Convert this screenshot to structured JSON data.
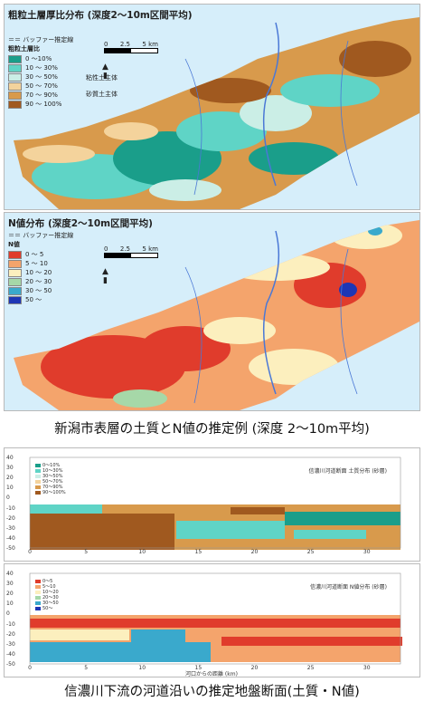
{
  "map1": {
    "title": "粗粒土層厚比分布 (深度2～10m区間平均)",
    "buffer_label": "＝＝ バッファー推定線",
    "legend_title": "粗粒土層比",
    "legend": [
      {
        "label": "0 ～10%",
        "color": "#1a9e8a"
      },
      {
        "label": "10 ～ 30%",
        "color": "#5fd4c6"
      },
      {
        "label": "30 ～ 50%",
        "color": "#cbeee6"
      },
      {
        "label": "50 ～ 70%",
        "color": "#f4d39c"
      },
      {
        "label": "70 ～ 90%",
        "color": "#d89a4c"
      },
      {
        "label": "90 ～ 100%",
        "color": "#a0591f"
      }
    ],
    "annot_top": "粘性土主体",
    "annot_bottom": "砂質土主体",
    "scale_ticks": [
      "0",
      "2.5",
      "5 km"
    ]
  },
  "map2": {
    "title": "N値分布 (深度2～10m区間平均)",
    "buffer_label": "＝＝ バッファー推定線",
    "legend_title": "N値",
    "legend": [
      {
        "label": "0 ～ 5",
        "color": "#e03c2c"
      },
      {
        "label": "5 ～ 10",
        "color": "#f4a46c"
      },
      {
        "label": "10 ～ 20",
        "color": "#fcefbe"
      },
      {
        "label": "20 ～ 30",
        "color": "#a6d8a8"
      },
      {
        "label": "30 ～ 50",
        "color": "#3aa9cc"
      },
      {
        "label": "50 ～",
        "color": "#1e36b5"
      }
    ],
    "scale_ticks": [
      "0",
      "2.5",
      "5 km"
    ]
  },
  "caption1": "新潟市表層の土質とN値の推定例 (深度 2～10m平均)",
  "caption2": "信濃川下流の河道沿いの推定地盤断面(土質・N値)",
  "section1": {
    "title": "信濃川河道断面 土質分布 (砂層)",
    "y_ticks": [
      "40",
      "30",
      "20",
      "10",
      "0",
      "-10",
      "-20",
      "-30",
      "-40",
      "-50"
    ],
    "x_ticks": [
      "0",
      "5",
      "10",
      "15",
      "20",
      "25",
      "30"
    ],
    "legend": [
      {
        "label": "0〜10%",
        "color": "#1a9e8a"
      },
      {
        "label": "10〜30%",
        "color": "#5fd4c6"
      },
      {
        "label": "30〜50%",
        "color": "#cbeee6"
      },
      {
        "label": "50〜70%",
        "color": "#f4d39c"
      },
      {
        "label": "70〜90%",
        "color": "#d89a4c"
      },
      {
        "label": "90〜100%",
        "color": "#a0591f"
      }
    ]
  },
  "section2": {
    "title": "信濃川河道断面 N値分布 (砂層)",
    "y_ticks": [
      "40",
      "30",
      "20",
      "10",
      "0",
      "-10",
      "-20",
      "-30",
      "-40",
      "-50"
    ],
    "x_ticks": [
      "0",
      "5",
      "10",
      "15",
      "20",
      "25",
      "30"
    ],
    "x_label": "河口からの距離 (km)",
    "legend": [
      {
        "label": "0〜5",
        "color": "#e03c2c"
      },
      {
        "label": "5〜10",
        "color": "#f4a46c"
      },
      {
        "label": "10〜20",
        "color": "#fcefbe"
      },
      {
        "label": "20〜30",
        "color": "#a6d8a8"
      },
      {
        "label": "30〜50",
        "color": "#3aa9cc"
      },
      {
        "label": "50〜",
        "color": "#1e36b5"
      }
    ]
  }
}
